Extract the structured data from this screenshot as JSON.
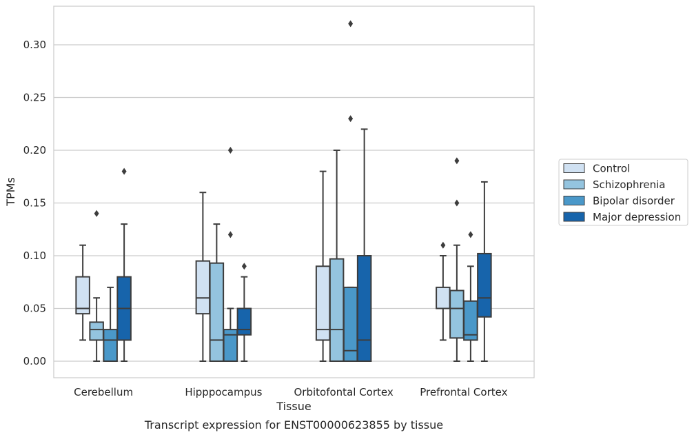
{
  "chart_data": {
    "type": "box",
    "xlabel": "Tissue",
    "ylabel": "TPMs",
    "caption": "Transcript expression for ENST00000623855 by tissue",
    "ylim": [
      -0.015,
      0.337
    ],
    "yticks": [
      0.0,
      0.05,
      0.1,
      0.15,
      0.2,
      0.25,
      0.3
    ],
    "ytick_labels": [
      "0.00",
      "0.05",
      "0.10",
      "0.15",
      "0.20",
      "0.25",
      "0.30"
    ],
    "grid": "horizontal",
    "legend_position": "right",
    "categories": [
      "Cerebellum",
      "Hipppocampus",
      "Orbitofontal Cortex",
      "Prefrontal Cortex"
    ],
    "series": [
      {
        "name": "Control",
        "color": "#d0e1f2",
        "boxes": [
          {
            "whislo": 0.02,
            "q1": 0.045,
            "med": 0.05,
            "q3": 0.08,
            "whishi": 0.11,
            "fliers": []
          },
          {
            "whislo": 0.0,
            "q1": 0.045,
            "med": 0.06,
            "q3": 0.095,
            "whishi": 0.16,
            "fliers": []
          },
          {
            "whislo": 0.0,
            "q1": 0.02,
            "med": 0.03,
            "q3": 0.09,
            "whishi": 0.18,
            "fliers": []
          },
          {
            "whislo": 0.02,
            "q1": 0.05,
            "med": 0.05,
            "q3": 0.07,
            "whishi": 0.1,
            "fliers": [
              0.11
            ]
          }
        ]
      },
      {
        "name": "Schizophrenia",
        "color": "#94c4df",
        "boxes": [
          {
            "whislo": 0.0,
            "q1": 0.02,
            "med": 0.03,
            "q3": 0.037,
            "whishi": 0.06,
            "fliers": [
              0.14
            ]
          },
          {
            "whislo": 0.0,
            "q1": 0.0,
            "med": 0.02,
            "q3": 0.093,
            "whishi": 0.13,
            "fliers": []
          },
          {
            "whislo": 0.0,
            "q1": 0.0,
            "med": 0.03,
            "q3": 0.097,
            "whishi": 0.2,
            "fliers": []
          },
          {
            "whislo": 0.0,
            "q1": 0.022,
            "med": 0.05,
            "q3": 0.067,
            "whishi": 0.11,
            "fliers": [
              0.15,
              0.19
            ]
          }
        ]
      },
      {
        "name": "Bipolar disorder",
        "color": "#4a98c9",
        "boxes": [
          {
            "whislo": 0.0,
            "q1": 0.0,
            "med": 0.02,
            "q3": 0.03,
            "whishi": 0.07,
            "fliers": []
          },
          {
            "whislo": 0.0,
            "q1": 0.0,
            "med": 0.025,
            "q3": 0.03,
            "whishi": 0.05,
            "fliers": [
              0.12,
              0.2
            ]
          },
          {
            "whislo": 0.0,
            "q1": 0.0,
            "med": 0.01,
            "q3": 0.07,
            "whishi": 0.07,
            "fliers": [
              0.23,
              0.32
            ]
          },
          {
            "whislo": 0.0,
            "q1": 0.02,
            "med": 0.025,
            "q3": 0.057,
            "whishi": 0.09,
            "fliers": [
              0.12
            ]
          }
        ]
      },
      {
        "name": "Major depression",
        "color": "#1764ab",
        "boxes": [
          {
            "whislo": 0.0,
            "q1": 0.02,
            "med": 0.05,
            "q3": 0.08,
            "whishi": 0.13,
            "fliers": [
              0.18
            ]
          },
          {
            "whislo": 0.0,
            "q1": 0.025,
            "med": 0.03,
            "q3": 0.05,
            "whishi": 0.08,
            "fliers": [
              0.09
            ]
          },
          {
            "whislo": 0.0,
            "q1": 0.0,
            "med": 0.02,
            "q3": 0.1,
            "whishi": 0.22,
            "fliers": []
          },
          {
            "whislo": 0.0,
            "q1": 0.042,
            "med": 0.06,
            "q3": 0.102,
            "whishi": 0.17,
            "fliers": []
          }
        ]
      }
    ]
  }
}
